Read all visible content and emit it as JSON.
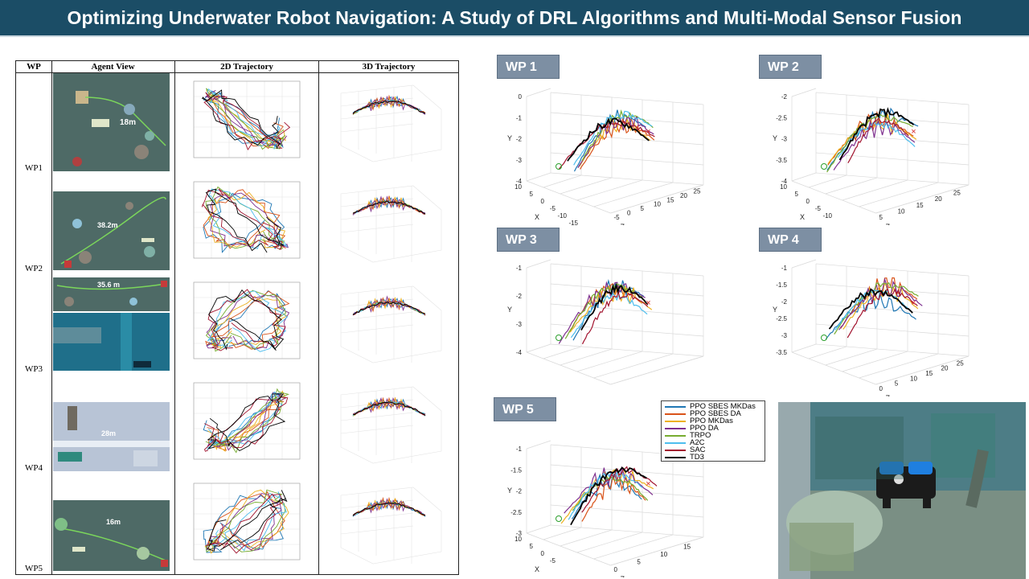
{
  "title": "Optimizing Underwater Robot Navigation: A Study of DRL Algorithms and Multi-Modal Sensor Fusion",
  "table": {
    "headers": [
      "WP",
      "Agent View",
      "2D Trajectory",
      "3D Trajectory"
    ],
    "rows": [
      {
        "label": "WP1",
        "distance": "18m"
      },
      {
        "label": "WP2",
        "distance": "38.2m"
      },
      {
        "label": "WP3",
        "distance": "35.6 m"
      },
      {
        "label": "WP4",
        "distance": "28m"
      },
      {
        "label": "WP5",
        "distance": "16m"
      }
    ]
  },
  "panels": [
    {
      "label": "WP 1",
      "x_ticks": [
        "10",
        "5",
        "0",
        "-5",
        "-10",
        "-15"
      ],
      "z_ticks": [
        "-5",
        "0",
        "5",
        "10",
        "15",
        "20",
        "25"
      ],
      "y_ticks": [
        "0",
        "-1",
        "-2",
        "-3",
        "-4"
      ]
    },
    {
      "label": "WP 2",
      "x_ticks": [
        "10",
        "5",
        "0",
        "-5",
        "-10"
      ],
      "z_ticks": [
        "5",
        "10",
        "15",
        "20",
        "25"
      ],
      "y_ticks": [
        "-2",
        "-2.5",
        "-3",
        "-3.5",
        "-4"
      ]
    },
    {
      "label": "WP 3",
      "x_ticks": [],
      "z_ticks": [],
      "y_ticks": [
        "-1",
        "-2",
        "-3",
        "-4"
      ]
    },
    {
      "label": "WP 4",
      "x_ticks": [],
      "z_ticks": [
        "0",
        "5",
        "10",
        "15",
        "20",
        "25"
      ],
      "y_ticks": [
        "-1",
        "-1.5",
        "-2",
        "-2.5",
        "-3",
        "-3.5"
      ]
    },
    {
      "label": "WP 5",
      "x_ticks": [
        "10",
        "5",
        "0",
        "-5"
      ],
      "z_ticks": [
        "0",
        "5",
        "10",
        "15"
      ],
      "y_ticks": [
        "-1",
        "-1.5",
        "-2",
        "-2.5",
        "-3"
      ]
    }
  ],
  "axis_names": {
    "x": "X",
    "y": "Y",
    "z": "Z"
  },
  "legend": [
    {
      "name": "PPO SBES MKDas",
      "color": "#1f77b4"
    },
    {
      "name": "PPO SBES DA",
      "color": "#d95319"
    },
    {
      "name": "PPO MKDas",
      "color": "#edb120"
    },
    {
      "name": "PPO DA",
      "color": "#7e2f8e"
    },
    {
      "name": "TRPO",
      "color": "#77ac30"
    },
    {
      "name": "A2C",
      "color": "#4dbeee"
    },
    {
      "name": "SAC",
      "color": "#a2142f"
    },
    {
      "name": "TD3",
      "color": "#000000"
    }
  ],
  "colors": {
    "banner": "#1b4d66",
    "panel_label": "#7d8fa3",
    "seafloor": "#4e6a66",
    "water": "#1f6f8a"
  }
}
